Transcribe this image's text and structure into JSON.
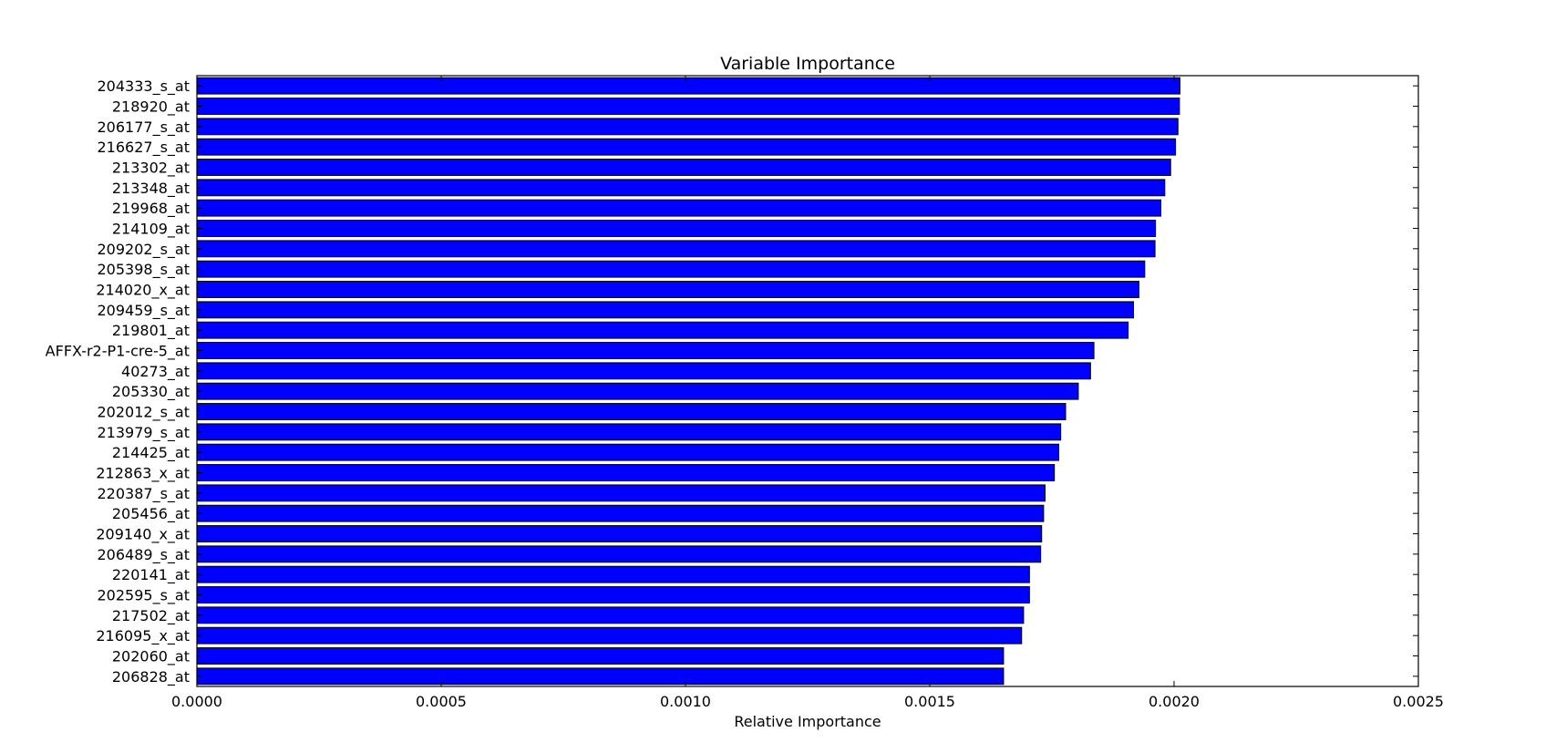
{
  "chart_data": {
    "type": "bar",
    "orientation": "horizontal",
    "title": "Variable Importance",
    "xlabel": "Relative Importance",
    "ylabel": "",
    "xlim": [
      0,
      0.0025
    ],
    "xticks": [
      "0.0000",
      "0.0005",
      "0.0010",
      "0.0015",
      "0.0020",
      "0.0025"
    ],
    "xtick_values": [
      0,
      0.0005,
      0.001,
      0.0015,
      0.002,
      0.0025
    ],
    "grid": false,
    "legend": "none",
    "bar_color": "#0000ff",
    "categories": [
      "204333_s_at",
      "218920_at",
      "206177_s_at",
      "216627_s_at",
      "213302_at",
      "213348_at",
      "219968_at",
      "214109_at",
      "209202_s_at",
      "205398_s_at",
      "214020_x_at",
      "209459_s_at",
      "219801_at",
      "AFFX-r2-P1-cre-5_at",
      "40273_at",
      "205330_at",
      "202012_s_at",
      "213979_s_at",
      "214425_at",
      "212863_x_at",
      "220387_s_at",
      "205456_at",
      "209140_x_at",
      "206489_s_at",
      "220141_at",
      "202595_s_at",
      "217502_at",
      "216095_x_at",
      "202060_at",
      "206828_at"
    ],
    "values": [
      0.002012,
      0.002011,
      0.002008,
      0.002003,
      0.001993,
      0.001981,
      0.001973,
      0.001962,
      0.001961,
      0.00194,
      0.001928,
      0.001917,
      0.001906,
      0.001836,
      0.001829,
      0.001804,
      0.001778,
      0.001768,
      0.001764,
      0.001755,
      0.001736,
      0.001733,
      0.001729,
      0.001727,
      0.001704,
      0.001704,
      0.001692,
      0.001688,
      0.001651,
      0.001651
    ]
  }
}
